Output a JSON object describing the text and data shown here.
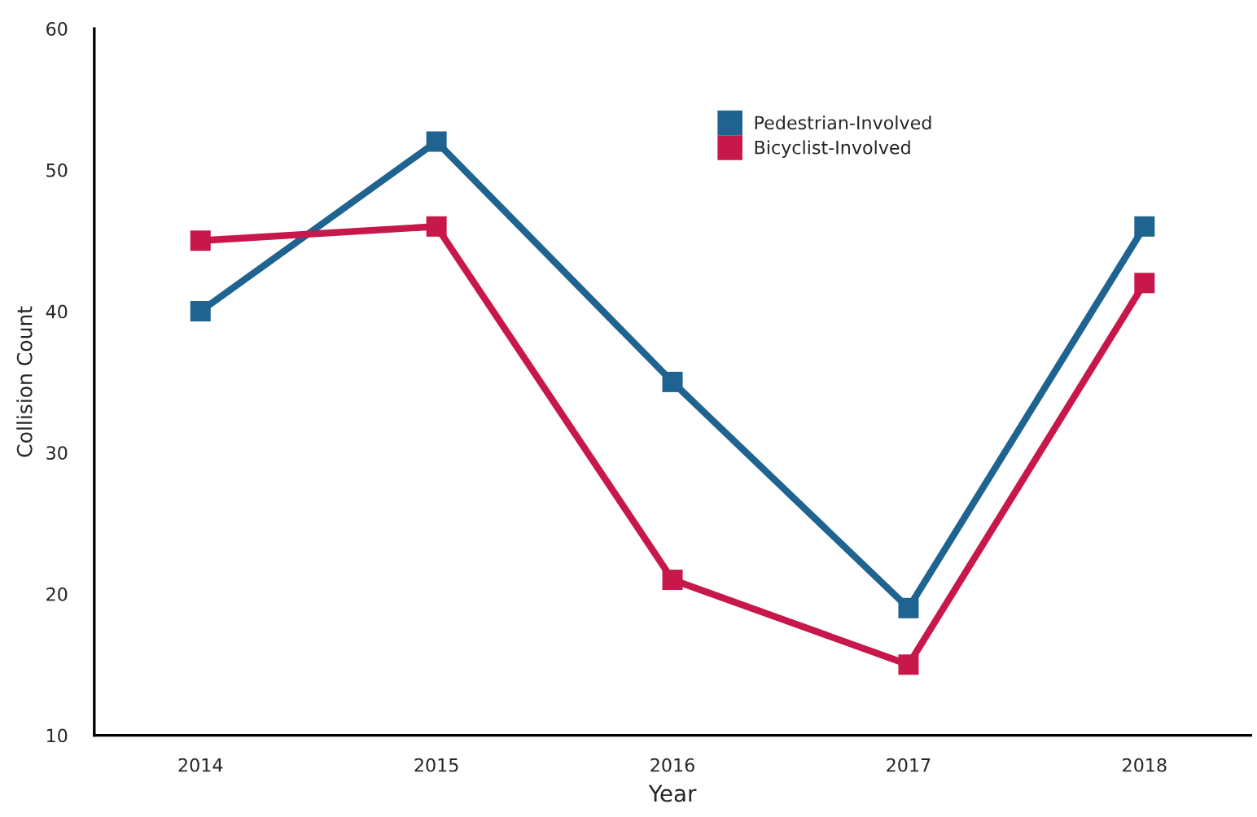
{
  "chart_data": {
    "type": "line",
    "xlabel": "Year",
    "ylabel": "Collision Count",
    "categories": [
      "2014",
      "2015",
      "2016",
      "2017",
      "2018"
    ],
    "series": [
      {
        "name": "Pedestrian-Involved",
        "color": "#1f6391",
        "values": [
          40,
          52,
          35,
          19,
          46
        ]
      },
      {
        "name": "Bicyclist-Involved",
        "color": "#c8174a",
        "values": [
          45,
          46,
          21,
          15,
          42
        ]
      }
    ],
    "ylim": [
      10,
      60
    ],
    "yticks": [
      10,
      20,
      30,
      40,
      50,
      60
    ],
    "grid": false,
    "legend": "top",
    "marker": "square",
    "line_style": "solid"
  }
}
